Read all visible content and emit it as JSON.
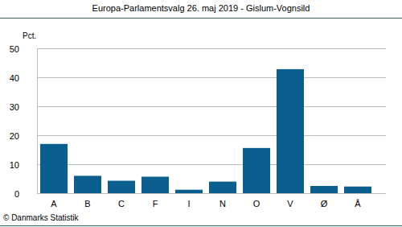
{
  "chart_data": {
    "type": "bar",
    "title": "Europa-Parlamentsvalg 26. maj 2019 - Gislum-Vognsild",
    "y_label": "Pct.",
    "annotations": [
      "© Danmarks Statistik"
    ],
    "categories": [
      "A",
      "B",
      "C",
      "F",
      "I",
      "N",
      "O",
      "V",
      "Ø",
      "Å"
    ],
    "values": [
      17,
      6,
      4.3,
      5.7,
      1.2,
      4,
      15.6,
      42.8,
      2.5,
      2.3
    ],
    "color": "#0b5f8e",
    "ylim": [
      0,
      50
    ],
    "yticks": [
      0,
      10,
      20,
      30,
      40,
      50
    ],
    "grid": true
  }
}
